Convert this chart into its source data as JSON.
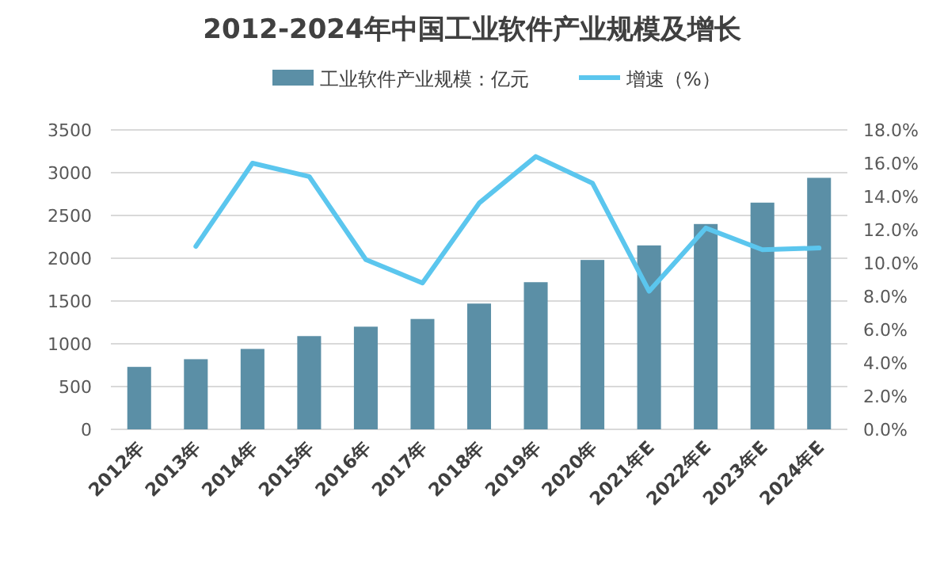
{
  "chart_data": {
    "type": "bar",
    "title": "2012-2024年中国工业软件产业规模及增长",
    "categories": [
      "2012年",
      "2013年",
      "2014年",
      "2015年",
      "2016年",
      "2017年",
      "2018年",
      "2019年",
      "2020年",
      "2021年E",
      "2022年E",
      "2023年E",
      "2024年E"
    ],
    "series": [
      {
        "name": "工业软件产业规模：亿元",
        "color": "#5b8fa6",
        "values": [
          730,
          820,
          940,
          1090,
          1200,
          1290,
          1470,
          1720,
          1980,
          2150,
          2400,
          2650,
          2940
        ]
      },
      {
        "name": "增速（%）",
        "type": "line",
        "axis": "y2",
        "color": "#5bc6ee",
        "values": [
          null,
          11.0,
          16.0,
          15.2,
          10.2,
          8.8,
          13.6,
          16.4,
          14.8,
          8.3,
          12.1,
          10.8,
          10.9
        ]
      }
    ],
    "ylim": [
      0,
      3500
    ],
    "yticks": [
      0,
      500,
      1000,
      1500,
      2000,
      2500,
      3000,
      3500
    ],
    "y2lim": [
      0,
      18
    ],
    "y2ticks": [
      {
        "value": 0,
        "label": "0.0%"
      },
      {
        "value": 2,
        "label": "2.0%"
      },
      {
        "value": 4,
        "label": "4.0%"
      },
      {
        "value": 6,
        "label": "6.0%"
      },
      {
        "value": 8,
        "label": "8.0%"
      },
      {
        "value": 10,
        "label": "10.0%"
      },
      {
        "value": 12,
        "label": "12.0%"
      },
      {
        "value": 14,
        "label": "14.0%"
      },
      {
        "value": 16,
        "label": "16.0%"
      },
      {
        "value": 18,
        "label": "18.0%"
      }
    ],
    "grid": "y",
    "legend": "top"
  }
}
